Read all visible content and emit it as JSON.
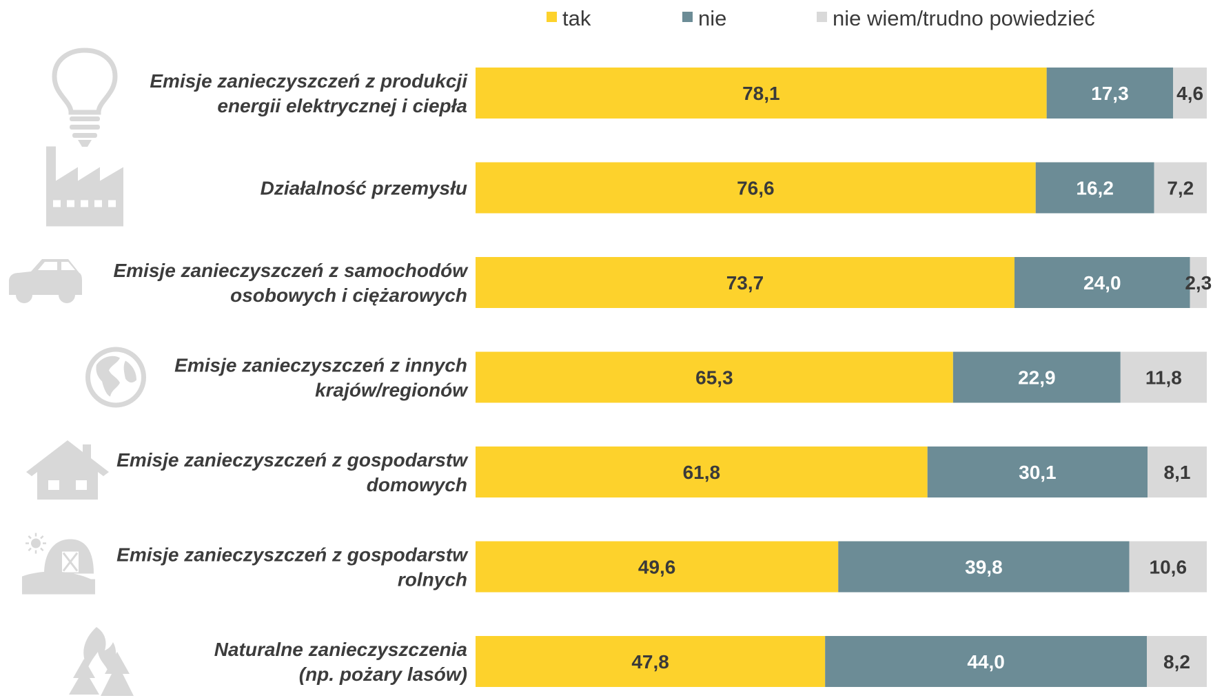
{
  "chart_data": {
    "type": "bar",
    "orientation": "horizontal",
    "stacked": true,
    "xlim": [
      0,
      100
    ],
    "grid": false,
    "legend_position": "top",
    "categories": [
      [
        "Emisje zanieczyszczeń z produkcji",
        "energii elektrycznej i ciepła"
      ],
      [
        "Działalność przemysłu"
      ],
      [
        "Emisje zanieczyszczeń z samochodów",
        "osobowych i ciężarowych"
      ],
      [
        "Emisje zanieczyszczeń z innych",
        "krajów/regionów"
      ],
      [
        "Emisje zanieczyszczeń z gospodarstw",
        "domowych"
      ],
      [
        "Emisje zanieczyszczeń z gospodarstw",
        "rolnych"
      ],
      [
        "Naturalne zanieczyszczenia",
        "(np. pożary lasów)"
      ]
    ],
    "category_icons": [
      "lightbulb-icon",
      "factory-icon",
      "car-icon",
      "globe-icon",
      "house-icon",
      "farm-icon",
      "forest-fire-icon"
    ],
    "series": [
      {
        "name": "tak",
        "color": "#FDD22C",
        "label_color": "#3a3a3a",
        "values": [
          78.1,
          76.6,
          73.7,
          65.3,
          61.8,
          49.6,
          47.8
        ],
        "labels": [
          "78,1",
          "76,6",
          "73,7",
          "65,3",
          "61,8",
          "49,6",
          "47,8"
        ]
      },
      {
        "name": "nie",
        "color": "#6C8C96",
        "label_color": "#ffffff",
        "values": [
          17.3,
          16.2,
          24.0,
          22.9,
          30.1,
          39.8,
          44.0
        ],
        "labels": [
          "17,3",
          "16,2",
          "24,0",
          "22,9",
          "30,1",
          "39,8",
          "44,0"
        ]
      },
      {
        "name": "nie wiem/trudno powiedzieć",
        "color": "#D9D9D9",
        "label_color": "#3a3a3a",
        "values": [
          4.6,
          7.2,
          2.3,
          11.8,
          8.1,
          10.6,
          8.2
        ],
        "labels": [
          "4,6",
          "7,2",
          "2,3",
          "11,8",
          "8,1",
          "10,6",
          "8,2"
        ]
      }
    ]
  }
}
